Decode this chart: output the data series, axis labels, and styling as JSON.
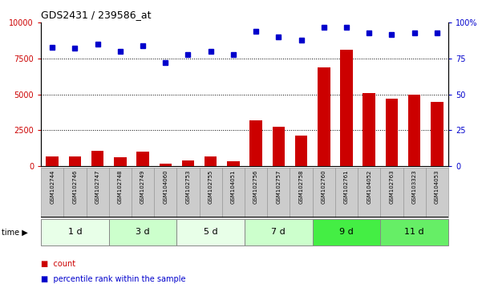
{
  "title": "GDS2431 / 239586_at",
  "samples": [
    "GSM102744",
    "GSM102746",
    "GSM102747",
    "GSM102748",
    "GSM102749",
    "GSM104060",
    "GSM102753",
    "GSM102755",
    "GSM104051",
    "GSM102756",
    "GSM102757",
    "GSM102758",
    "GSM102760",
    "GSM102761",
    "GSM104052",
    "GSM102763",
    "GSM103323",
    "GSM104053"
  ],
  "counts": [
    700,
    650,
    1050,
    600,
    1000,
    200,
    400,
    700,
    350,
    3200,
    2750,
    2150,
    6900,
    8100,
    5100,
    4700,
    5000,
    4500
  ],
  "percentile": [
    83,
    82,
    85,
    80,
    84,
    72,
    78,
    80,
    78,
    94,
    90,
    88,
    97,
    97,
    93,
    92,
    93,
    93
  ],
  "groups": [
    {
      "label": "1 d",
      "start": 0,
      "end": 3,
      "color": "#e8ffe8"
    },
    {
      "label": "3 d",
      "start": 3,
      "end": 6,
      "color": "#ccffcc"
    },
    {
      "label": "5 d",
      "start": 6,
      "end": 9,
      "color": "#e8ffe8"
    },
    {
      "label": "7 d",
      "start": 9,
      "end": 12,
      "color": "#ccffcc"
    },
    {
      "label": "9 d",
      "start": 12,
      "end": 15,
      "color": "#44ee44"
    },
    {
      "label": "11 d",
      "start": 15,
      "end": 18,
      "color": "#66ee66"
    }
  ],
  "bar_color": "#cc0000",
  "dot_color": "#0000cc",
  "ylim_left": [
    0,
    10000
  ],
  "ylim_right": [
    0,
    100
  ],
  "yticks_left": [
    0,
    2500,
    5000,
    7500,
    10000
  ],
  "yticks_right": [
    0,
    25,
    50,
    75,
    100
  ],
  "grid_values": [
    2500,
    5000,
    7500
  ],
  "sample_bg": "#cccccc",
  "plot_bg": "#ffffff"
}
